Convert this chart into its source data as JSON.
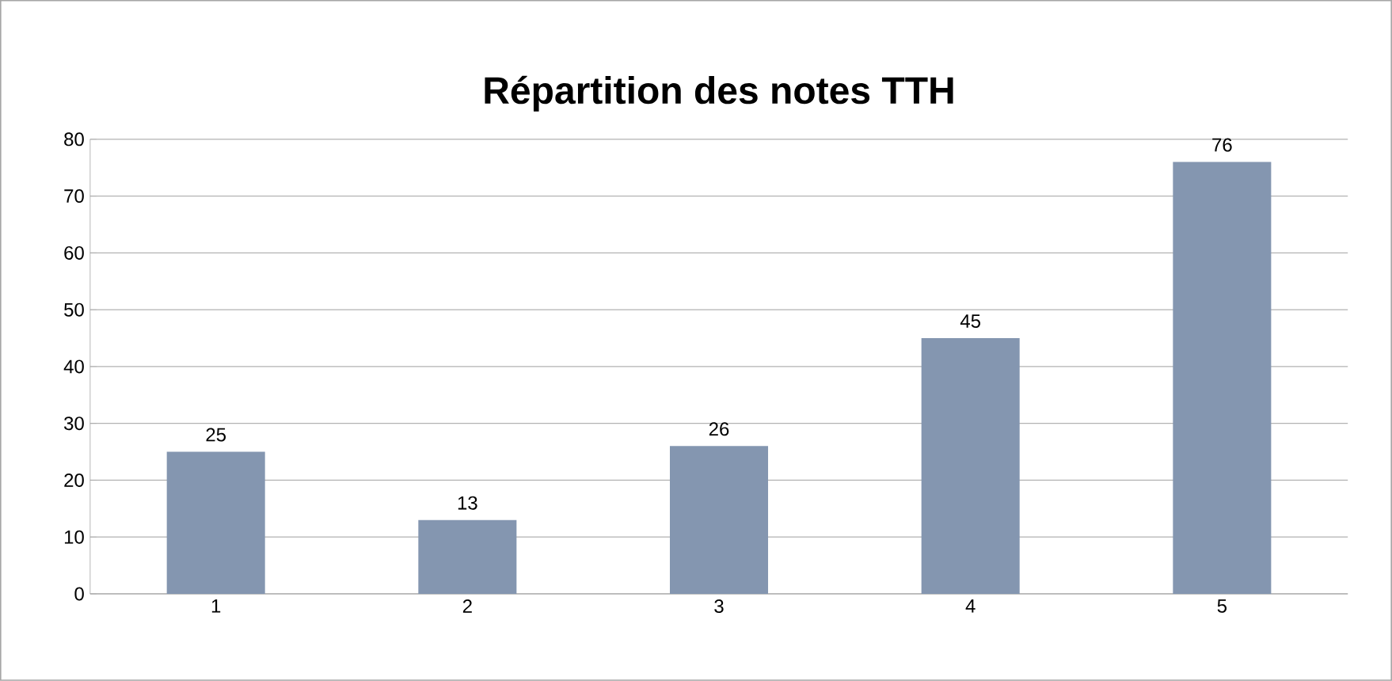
{
  "chart_data": {
    "type": "bar",
    "title": "Répartition des notes TTH",
    "categories": [
      "1",
      "2",
      "3",
      "4",
      "5"
    ],
    "values": [
      25,
      13,
      26,
      45,
      76
    ],
    "color": "#8496b0",
    "ylim": [
      0,
      80
    ],
    "yticks": [
      0,
      10,
      20,
      30,
      40,
      50,
      60,
      70,
      80
    ],
    "grid": "y",
    "data_labels": true
  }
}
